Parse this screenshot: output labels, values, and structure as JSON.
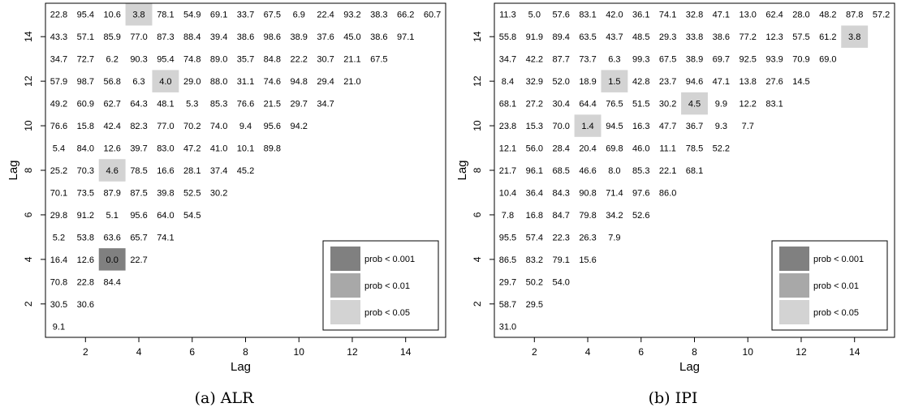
{
  "chart_data": [
    {
      "type": "heatmap",
      "caption": "(a)  ALR",
      "xlabel": "Lag",
      "ylabel": "Lag",
      "xlim": [
        0.5,
        15.5
      ],
      "ylim": [
        0.5,
        15.5
      ],
      "xticks": [
        "2",
        "4",
        "6",
        "8",
        "10",
        "12",
        "14"
      ],
      "yticks": [
        "2",
        "4",
        "6",
        "8",
        "10",
        "12",
        "14"
      ],
      "legend": {
        "position": "bottom-right",
        "entries": [
          {
            "label": "prob < 0.001",
            "color": "#808080"
          },
          {
            "label": "prob < 0.01",
            "color": "#a8a8a8"
          },
          {
            "label": "prob < 0.05",
            "color": "#d3d3d3"
          }
        ]
      },
      "rows": [
        {
          "lag": 15,
          "values": [
            "22.8",
            "95.4",
            "10.6",
            "3.8",
            "78.1",
            "54.9",
            "69.1",
            "33.7",
            "67.5",
            "6.9",
            "22.4",
            "93.2",
            "38.3",
            "66.2",
            "60.7"
          ]
        },
        {
          "lag": 14,
          "values": [
            "43.3",
            "57.1",
            "85.9",
            "77.0",
            "87.3",
            "88.4",
            "39.4",
            "38.6",
            "98.6",
            "38.9",
            "37.6",
            "45.0",
            "38.6",
            "97.1"
          ]
        },
        {
          "lag": 13,
          "values": [
            "34.7",
            "72.7",
            "6.2",
            "90.3",
            "95.4",
            "74.8",
            "89.0",
            "35.7",
            "84.8",
            "22.2",
            "30.7",
            "21.1",
            "67.5"
          ]
        },
        {
          "lag": 12,
          "values": [
            "57.9",
            "98.7",
            "56.8",
            "6.3",
            "4.0",
            "29.0",
            "88.0",
            "31.1",
            "74.6",
            "94.8",
            "29.4",
            "21.0"
          ]
        },
        {
          "lag": 11,
          "values": [
            "49.2",
            "60.9",
            "62.7",
            "64.3",
            "48.1",
            "5.3",
            "85.3",
            "76.6",
            "21.5",
            "29.7",
            "34.7"
          ]
        },
        {
          "lag": 10,
          "values": [
            "76.6",
            "15.8",
            "42.4",
            "82.3",
            "77.0",
            "70.2",
            "74.0",
            "9.4",
            "95.6",
            "94.2"
          ]
        },
        {
          "lag": 9,
          "values": [
            "5.4",
            "84.0",
            "12.6",
            "39.7",
            "83.0",
            "47.2",
            "41.0",
            "10.1",
            "89.8"
          ]
        },
        {
          "lag": 8,
          "values": [
            "25.2",
            "70.3",
            "4.6",
            "78.5",
            "16.6",
            "28.1",
            "37.4",
            "45.2"
          ]
        },
        {
          "lag": 7,
          "values": [
            "70.1",
            "73.5",
            "87.9",
            "87.5",
            "39.8",
            "52.5",
            "30.2"
          ]
        },
        {
          "lag": 6,
          "values": [
            "29.8",
            "91.2",
            "5.1",
            "95.6",
            "64.0",
            "54.5"
          ]
        },
        {
          "lag": 5,
          "values": [
            "5.2",
            "53.8",
            "63.6",
            "65.7",
            "74.1"
          ]
        },
        {
          "lag": 4,
          "values": [
            "16.4",
            "12.6",
            "0.0",
            "22.7"
          ]
        },
        {
          "lag": 3,
          "values": [
            "70.8",
            "22.8",
            "84.4"
          ]
        },
        {
          "lag": 2,
          "values": [
            "30.5",
            "30.6"
          ]
        },
        {
          "lag": 1,
          "values": [
            "9.1"
          ]
        }
      ]
    },
    {
      "type": "heatmap",
      "caption": "(b)  IPI",
      "xlabel": "Lag",
      "ylabel": "Lag",
      "xlim": [
        0.5,
        15.5
      ],
      "ylim": [
        0.5,
        15.5
      ],
      "xticks": [
        "2",
        "4",
        "6",
        "8",
        "10",
        "12",
        "14"
      ],
      "yticks": [
        "2",
        "4",
        "6",
        "8",
        "10",
        "12",
        "14"
      ],
      "legend": {
        "position": "bottom-right",
        "entries": [
          {
            "label": "prob < 0.001",
            "color": "#808080"
          },
          {
            "label": "prob < 0.01",
            "color": "#a8a8a8"
          },
          {
            "label": "prob < 0.05",
            "color": "#d3d3d3"
          }
        ]
      },
      "rows": [
        {
          "lag": 15,
          "values": [
            "11.3",
            "5.0",
            "57.6",
            "83.1",
            "42.0",
            "36.1",
            "74.1",
            "32.8",
            "47.1",
            "13.0",
            "62.4",
            "28.0",
            "48.2",
            "87.8",
            "57.2"
          ]
        },
        {
          "lag": 14,
          "values": [
            "55.8",
            "91.9",
            "89.4",
            "63.5",
            "43.7",
            "48.5",
            "29.3",
            "33.8",
            "38.6",
            "77.2",
            "12.3",
            "57.5",
            "61.2",
            "3.8"
          ]
        },
        {
          "lag": 13,
          "values": [
            "34.7",
            "42.2",
            "87.7",
            "73.7",
            "6.3",
            "99.3",
            "67.5",
            "38.9",
            "69.7",
            "92.5",
            "93.9",
            "70.9",
            "69.0"
          ]
        },
        {
          "lag": 12,
          "values": [
            "8.4",
            "32.9",
            "52.0",
            "18.9",
            "1.5",
            "42.8",
            "23.7",
            "94.6",
            "47.1",
            "13.8",
            "27.6",
            "14.5"
          ]
        },
        {
          "lag": 11,
          "values": [
            "68.1",
            "27.2",
            "30.4",
            "64.4",
            "76.5",
            "51.5",
            "30.2",
            "4.5",
            "9.9",
            "12.2",
            "83.1"
          ]
        },
        {
          "lag": 10,
          "values": [
            "23.8",
            "15.3",
            "70.0",
            "1.4",
            "94.5",
            "16.3",
            "47.7",
            "36.7",
            "9.3",
            "7.7"
          ]
        },
        {
          "lag": 9,
          "values": [
            "12.1",
            "56.0",
            "28.4",
            "20.4",
            "69.8",
            "46.0",
            "11.1",
            "78.5",
            "52.2"
          ]
        },
        {
          "lag": 8,
          "values": [
            "21.7",
            "96.1",
            "68.5",
            "46.6",
            "8.0",
            "85.3",
            "22.1",
            "68.1"
          ]
        },
        {
          "lag": 7,
          "values": [
            "10.4",
            "36.4",
            "84.3",
            "90.8",
            "71.4",
            "97.6",
            "86.0"
          ]
        },
        {
          "lag": 6,
          "values": [
            "7.8",
            "16.8",
            "84.7",
            "79.8",
            "34.2",
            "52.6"
          ]
        },
        {
          "lag": 5,
          "values": [
            "95.5",
            "57.4",
            "22.3",
            "26.3",
            "7.9"
          ]
        },
        {
          "lag": 4,
          "values": [
            "86.5",
            "83.2",
            "79.1",
            "15.6"
          ]
        },
        {
          "lag": 3,
          "values": [
            "29.7",
            "50.2",
            "54.0"
          ]
        },
        {
          "lag": 2,
          "values": [
            "58.7",
            "29.5"
          ]
        },
        {
          "lag": 1,
          "values": [
            "31.0"
          ]
        }
      ]
    }
  ]
}
